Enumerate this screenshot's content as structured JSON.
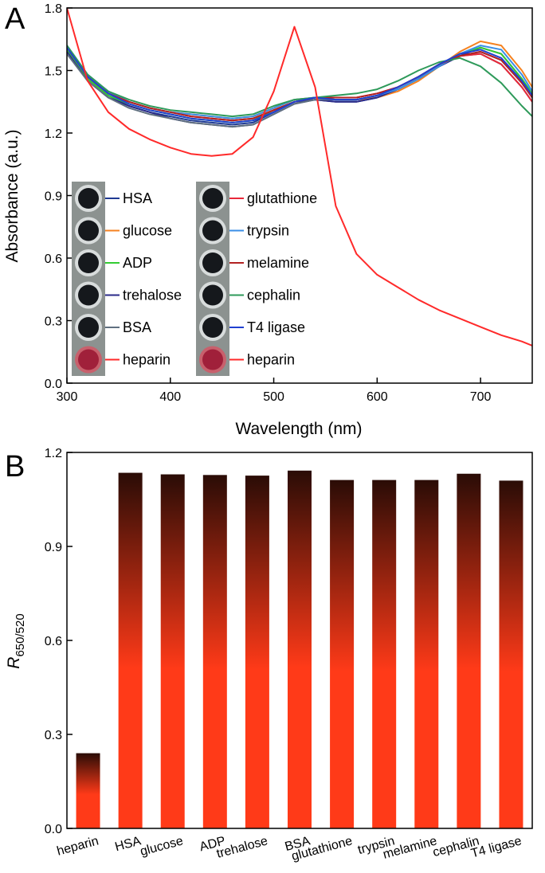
{
  "chart_data": [
    {
      "type": "line",
      "panel_label": "A",
      "x_label": "Wavelength (nm)",
      "y_label": "Absorbance (a.u.)",
      "x": [
        300,
        320,
        340,
        360,
        380,
        400,
        420,
        440,
        460,
        480,
        500,
        520,
        540,
        560,
        580,
        600,
        620,
        640,
        660,
        680,
        700,
        720,
        740,
        750
      ],
      "xlim": [
        300,
        750
      ],
      "xticks": [
        300,
        400,
        500,
        600,
        700
      ],
      "ylim": [
        0,
        1.8
      ],
      "yticks": [
        {
          "value": 0,
          "label": "0.0"
        },
        0.3,
        0.6,
        0.9,
        1.2,
        1.5,
        1.8
      ],
      "series": [
        {
          "name": "HSA",
          "color": "#1f3a93",
          "values": [
            1.6,
            1.46,
            1.38,
            1.33,
            1.3,
            1.28,
            1.26,
            1.25,
            1.24,
            1.25,
            1.3,
            1.35,
            1.36,
            1.35,
            1.35,
            1.37,
            1.41,
            1.46,
            1.52,
            1.57,
            1.61,
            1.58,
            1.46,
            1.38
          ]
        },
        {
          "name": "glucose",
          "color": "#f58220",
          "values": [
            1.61,
            1.47,
            1.39,
            1.35,
            1.32,
            1.3,
            1.29,
            1.28,
            1.27,
            1.28,
            1.32,
            1.36,
            1.37,
            1.36,
            1.36,
            1.37,
            1.4,
            1.45,
            1.52,
            1.59,
            1.64,
            1.62,
            1.5,
            1.42
          ]
        },
        {
          "name": "ADP",
          "color": "#33cc33",
          "values": [
            1.6,
            1.46,
            1.38,
            1.34,
            1.31,
            1.29,
            1.27,
            1.26,
            1.25,
            1.26,
            1.31,
            1.35,
            1.37,
            1.36,
            1.36,
            1.38,
            1.41,
            1.46,
            1.52,
            1.58,
            1.61,
            1.58,
            1.46,
            1.39
          ]
        },
        {
          "name": "trehalose",
          "color": "#2a2a8a",
          "values": [
            1.59,
            1.45,
            1.37,
            1.33,
            1.3,
            1.27,
            1.25,
            1.24,
            1.23,
            1.24,
            1.29,
            1.34,
            1.36,
            1.35,
            1.35,
            1.37,
            1.41,
            1.46,
            1.52,
            1.57,
            1.59,
            1.55,
            1.44,
            1.37
          ]
        },
        {
          "name": "BSA",
          "color": "#607080",
          "values": [
            1.58,
            1.45,
            1.37,
            1.32,
            1.29,
            1.27,
            1.25,
            1.24,
            1.23,
            1.24,
            1.29,
            1.34,
            1.36,
            1.36,
            1.36,
            1.38,
            1.42,
            1.47,
            1.53,
            1.57,
            1.58,
            1.53,
            1.42,
            1.35
          ]
        },
        {
          "name": "glutathione",
          "color": "#e8283a",
          "values": [
            1.61,
            1.47,
            1.39,
            1.35,
            1.32,
            1.3,
            1.28,
            1.27,
            1.26,
            1.27,
            1.31,
            1.35,
            1.37,
            1.37,
            1.37,
            1.39,
            1.42,
            1.47,
            1.53,
            1.57,
            1.58,
            1.53,
            1.42,
            1.35
          ]
        },
        {
          "name": "trypsin",
          "color": "#3a8ee6",
          "values": [
            1.62,
            1.48,
            1.4,
            1.35,
            1.32,
            1.3,
            1.29,
            1.28,
            1.27,
            1.28,
            1.32,
            1.36,
            1.37,
            1.36,
            1.36,
            1.38,
            1.41,
            1.46,
            1.52,
            1.58,
            1.62,
            1.6,
            1.48,
            1.4
          ]
        },
        {
          "name": "melamine",
          "color": "#b22222",
          "values": [
            1.61,
            1.47,
            1.39,
            1.35,
            1.32,
            1.3,
            1.28,
            1.27,
            1.26,
            1.27,
            1.31,
            1.35,
            1.37,
            1.37,
            1.37,
            1.39,
            1.42,
            1.47,
            1.53,
            1.57,
            1.59,
            1.55,
            1.44,
            1.37
          ]
        },
        {
          "name": "cephalin",
          "color": "#2e9a5a",
          "values": [
            1.62,
            1.48,
            1.4,
            1.36,
            1.33,
            1.31,
            1.3,
            1.29,
            1.28,
            1.29,
            1.33,
            1.36,
            1.37,
            1.38,
            1.39,
            1.41,
            1.45,
            1.5,
            1.54,
            1.56,
            1.52,
            1.44,
            1.33,
            1.28
          ]
        },
        {
          "name": "T4 ligase",
          "color": "#2040d0",
          "values": [
            1.61,
            1.47,
            1.39,
            1.34,
            1.31,
            1.29,
            1.27,
            1.26,
            1.25,
            1.26,
            1.3,
            1.35,
            1.37,
            1.36,
            1.36,
            1.38,
            1.42,
            1.47,
            1.53,
            1.58,
            1.6,
            1.56,
            1.45,
            1.38
          ]
        },
        {
          "name": "heparin",
          "color": "#ff2a2a",
          "values": [
            1.8,
            1.45,
            1.3,
            1.22,
            1.17,
            1.13,
            1.1,
            1.09,
            1.1,
            1.18,
            1.4,
            1.71,
            1.42,
            0.85,
            0.62,
            0.52,
            0.46,
            0.4,
            0.35,
            0.31,
            0.27,
            0.23,
            0.2,
            0.18
          ]
        }
      ]
    },
    {
      "type": "bar",
      "panel_label": "B",
      "y_label": "R",
      "y_label_sub": "650/520",
      "categories": [
        "heparin",
        "HSA",
        "glucose",
        "ADP",
        "trehalose",
        "BSA",
        "glutathione",
        "trypsin",
        "melamine",
        "cephalin",
        "T4 ligase"
      ],
      "values": [
        0.24,
        1.135,
        1.13,
        1.128,
        1.126,
        1.142,
        1.112,
        1.112,
        1.112,
        1.132,
        1.11
      ],
      "colors": [
        "#ff3a18",
        "#2a0c06"
      ],
      "ylim": [
        0,
        1.2
      ],
      "yticks": [
        {
          "value": 0,
          "label": "0.0"
        },
        0.3,
        0.6,
        0.9,
        1.2
      ]
    }
  ]
}
